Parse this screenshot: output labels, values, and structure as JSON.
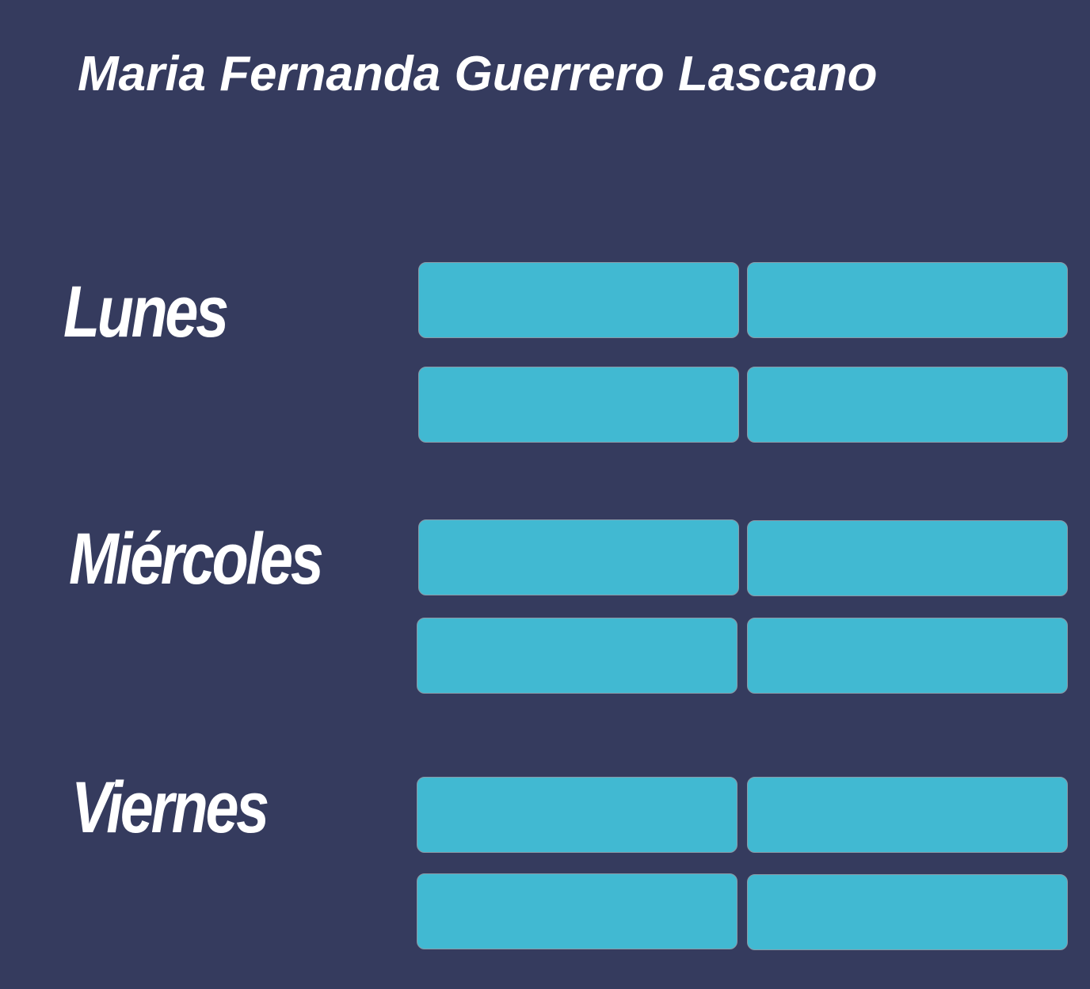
{
  "title": "Maria Fernanda Guerrero Lascano",
  "days": [
    {
      "label": "Lunes",
      "slots": [
        "",
        "",
        "",
        ""
      ]
    },
    {
      "label": "Miércoles",
      "slots": [
        "",
        "",
        "",
        ""
      ]
    },
    {
      "label": "Viernes",
      "slots": [
        "",
        "",
        "",
        ""
      ]
    }
  ],
  "colors": {
    "background": "#353b5e",
    "slot": "#41b9d2",
    "text": "#ffffff"
  }
}
